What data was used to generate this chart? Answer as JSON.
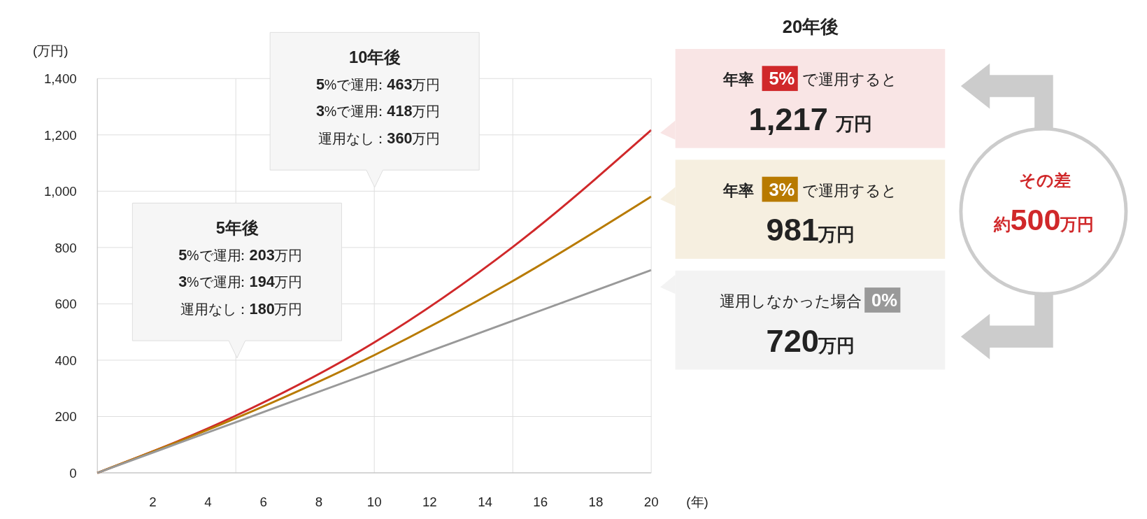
{
  "chart_data": {
    "type": "line",
    "xlabel": "(年)",
    "ylabel": "(万円)",
    "xlim": [
      0,
      20
    ],
    "xticks": [
      2,
      4,
      6,
      8,
      10,
      12,
      14,
      16,
      18,
      20
    ],
    "ylim": [
      0,
      1400
    ],
    "yticks": [
      0,
      200,
      400,
      600,
      800,
      {
        "value": 1000,
        "label": "1,000"
      },
      {
        "value": 1200,
        "label": "1,200"
      },
      {
        "value": 1400,
        "label": "1,400"
      }
    ],
    "grid": "y",
    "x": [
      0,
      5,
      10,
      15,
      20
    ],
    "series": [
      {
        "color": "#d0282a",
        "values": [
          0,
          203,
          463,
          802,
          1217
        ]
      },
      {
        "color": "#b87a00",
        "values": [
          0,
          194,
          418,
          681,
          981
        ]
      },
      {
        "color": "#999999",
        "values": [
          0,
          180,
          360,
          540,
          720
        ]
      }
    ],
    "ref_lines": [
      {
        "axis": "x",
        "value": 5,
        "color": "#dddddd"
      },
      {
        "axis": "x",
        "value": 10,
        "color": "#dddddd"
      },
      {
        "axis": "x",
        "value": 15,
        "color": "#dddddd"
      }
    ],
    "annotations": [
      "20年後",
      "その差",
      "約500万円",
      "5年後",
      "5%で運用：203万円",
      "3%で運用：194万円",
      "運用なし：180万円",
      "10年後",
      "5%で運用：463万円",
      "3%で運用：418万円",
      "運用なし：360万円",
      "年率 5% で運用すると",
      "1,217万円",
      "年率 3% で運用すると",
      "981万円",
      "運用しなかった場合 0%",
      "720万円"
    ]
  }
}
